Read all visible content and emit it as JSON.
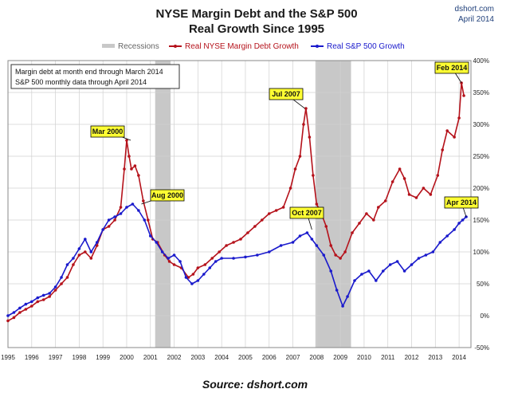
{
  "header": {
    "title_line1": "NYSE Margin Debt and the S&P 500",
    "title_line2": "Real Growth Since 1995",
    "brand_site": "dshort.com",
    "brand_date": "April 2014"
  },
  "notes": {
    "line1": "Margin debt at month end through March 2014",
    "line2": "S&P 500 monthly data through April 2014"
  },
  "footer": {
    "source": "Source: dshort.com"
  },
  "colors": {
    "margin": "#b5121b",
    "sp500": "#1a1acc",
    "recession": "#c8c8c8",
    "grid": "#d0d0d0",
    "annotation": "#ffff33"
  },
  "chart_data": {
    "type": "line",
    "title": "NYSE Margin Debt and the S&P 500 Real Growth Since 1995",
    "xlim": [
      1995.0,
      2014.5
    ],
    "ylim": [
      -50,
      400
    ],
    "y_ticks": [
      -50,
      0,
      50,
      100,
      150,
      200,
      250,
      300,
      350,
      400
    ],
    "y_tick_labels": [
      "-50%",
      "0%",
      "50%",
      "100%",
      "150%",
      "200%",
      "250%",
      "300%",
      "350%",
      "400%"
    ],
    "x_ticks": [
      1995,
      1996,
      1997,
      1998,
      1999,
      2000,
      2001,
      2002,
      2003,
      2004,
      2005,
      2006,
      2007,
      2008,
      2009,
      2010,
      2011,
      2012,
      2013,
      2014
    ],
    "x_tick_labels": [
      "1995",
      "1996",
      "1997",
      "1998",
      "1999",
      "2000",
      "2001",
      "2002",
      "2003",
      "2004",
      "2005",
      "2006",
      "2007",
      "2008",
      "2009",
      "2010",
      "2011",
      "2012",
      "2013",
      "2014"
    ],
    "legend": [
      {
        "name": "Recessions",
        "kind": "band"
      },
      {
        "name": "Real NYSE Margin Debt Growth",
        "kind": "line",
        "series": 0
      },
      {
        "name": "Real S&P 500 Growth",
        "kind": "line",
        "series": 1
      }
    ],
    "recessions": [
      {
        "start": 2001.2,
        "end": 2001.85
      },
      {
        "start": 2007.95,
        "end": 2009.45
      }
    ],
    "series": [
      {
        "name": "Real NYSE Margin Debt Growth",
        "color": "#b5121b",
        "x": [
          1995.0,
          1995.25,
          1995.5,
          1995.75,
          1996.0,
          1996.25,
          1996.5,
          1996.75,
          1997.0,
          1997.25,
          1997.5,
          1997.75,
          1998.0,
          1998.25,
          1998.5,
          1998.75,
          1999.0,
          1999.25,
          1999.5,
          1999.75,
          1999.9,
          2000.0,
          2000.1,
          2000.2,
          2000.35,
          2000.5,
          2000.7,
          2000.9,
          2001.1,
          2001.3,
          2001.6,
          2001.8,
          2002.0,
          2002.3,
          2002.6,
          2002.8,
          2003.0,
          2003.3,
          2003.6,
          2003.9,
          2004.2,
          2004.5,
          2004.8,
          2005.1,
          2005.4,
          2005.7,
          2006.0,
          2006.3,
          2006.6,
          2006.9,
          2007.1,
          2007.3,
          2007.45,
          2007.55,
          2007.7,
          2007.85,
          2008.0,
          2008.2,
          2008.4,
          2008.6,
          2008.8,
          2009.0,
          2009.2,
          2009.5,
          2009.8,
          2010.1,
          2010.4,
          2010.6,
          2010.9,
          2011.2,
          2011.5,
          2011.7,
          2011.9,
          2012.2,
          2012.5,
          2012.8,
          2013.1,
          2013.3,
          2013.5,
          2013.8,
          2014.0,
          2014.1,
          2014.2
        ],
        "values": [
          -8,
          -3,
          5,
          10,
          15,
          22,
          25,
          30,
          40,
          50,
          60,
          80,
          95,
          100,
          90,
          110,
          135,
          140,
          150,
          170,
          230,
          275,
          250,
          230,
          235,
          220,
          180,
          150,
          120,
          115,
          95,
          85,
          80,
          75,
          60,
          65,
          75,
          80,
          90,
          100,
          110,
          115,
          120,
          130,
          140,
          150,
          160,
          165,
          170,
          200,
          230,
          250,
          300,
          325,
          280,
          220,
          175,
          160,
          140,
          110,
          95,
          90,
          100,
          130,
          145,
          160,
          150,
          170,
          180,
          210,
          230,
          215,
          190,
          185,
          200,
          190,
          220,
          260,
          290,
          280,
          310,
          365,
          345
        ]
      },
      {
        "name": "Real S&P 500 Growth",
        "color": "#1a1acc",
        "x": [
          1995.0,
          1995.25,
          1995.5,
          1995.75,
          1996.0,
          1996.25,
          1996.5,
          1996.75,
          1997.0,
          1997.25,
          1997.5,
          1997.75,
          1998.0,
          1998.25,
          1998.5,
          1998.75,
          1999.0,
          1999.25,
          1999.5,
          1999.75,
          2000.0,
          2000.25,
          2000.5,
          2000.75,
          2001.0,
          2001.25,
          2001.5,
          2001.75,
          2002.0,
          2002.25,
          2002.5,
          2002.75,
          2003.0,
          2003.25,
          2003.5,
          2003.75,
          2004.0,
          2004.5,
          2005.0,
          2005.5,
          2006.0,
          2006.5,
          2007.0,
          2007.3,
          2007.6,
          2007.8,
          2008.0,
          2008.3,
          2008.6,
          2008.85,
          2009.1,
          2009.3,
          2009.6,
          2009.9,
          2010.2,
          2010.5,
          2010.8,
          2011.1,
          2011.4,
          2011.7,
          2012.0,
          2012.3,
          2012.6,
          2012.9,
          2013.2,
          2013.5,
          2013.8,
          2014.0,
          2014.15,
          2014.3
        ],
        "values": [
          0,
          5,
          12,
          18,
          22,
          28,
          32,
          35,
          45,
          60,
          80,
          90,
          105,
          120,
          100,
          115,
          135,
          150,
          155,
          160,
          170,
          175,
          165,
          150,
          125,
          115,
          100,
          90,
          95,
          85,
          60,
          50,
          55,
          65,
          75,
          85,
          90,
          90,
          92,
          95,
          100,
          110,
          115,
          125,
          130,
          120,
          110,
          95,
          70,
          40,
          15,
          30,
          55,
          65,
          70,
          55,
          70,
          80,
          85,
          70,
          80,
          90,
          95,
          100,
          115,
          125,
          135,
          145,
          150,
          155
        ]
      }
    ],
    "annotations": [
      {
        "label": "Mar 2000",
        "x": 2000.17,
        "y": 275,
        "series": 0
      },
      {
        "label": "Aug 2000",
        "x": 2000.62,
        "y": 175,
        "series": 1
      },
      {
        "label": "Jul 2007",
        "x": 2007.5,
        "y": 325,
        "series": 0
      },
      {
        "label": "Oct 2007",
        "x": 2007.8,
        "y": 135,
        "series": 1
      },
      {
        "label": "Feb 2014",
        "x": 2014.1,
        "y": 365,
        "series": 0
      },
      {
        "label": "Apr 2014",
        "x": 2014.3,
        "y": 155,
        "series": 1
      }
    ]
  }
}
